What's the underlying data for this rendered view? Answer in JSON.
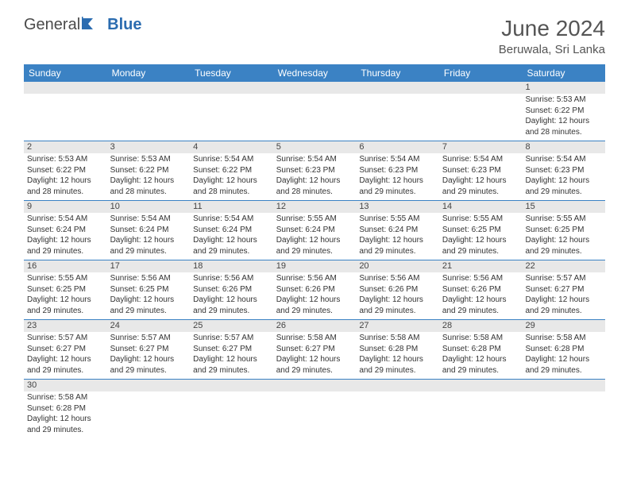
{
  "brand": {
    "general": "General",
    "blue": "Blue"
  },
  "title": "June 2024",
  "location": "Beruwala, Sri Lanka",
  "colors": {
    "header_bg": "#3b82c4",
    "header_text": "#ffffff",
    "daynum_bg": "#e8e8e8",
    "row_divider": "#3b82c4",
    "text": "#333333",
    "title_color": "#555555"
  },
  "dayNames": [
    "Sunday",
    "Monday",
    "Tuesday",
    "Wednesday",
    "Thursday",
    "Friday",
    "Saturday"
  ],
  "weeks": [
    [
      null,
      null,
      null,
      null,
      null,
      null,
      {
        "n": "1",
        "sunrise": "5:53 AM",
        "sunset": "6:22 PM",
        "daylight": "12 hours and 28 minutes."
      }
    ],
    [
      {
        "n": "2",
        "sunrise": "5:53 AM",
        "sunset": "6:22 PM",
        "daylight": "12 hours and 28 minutes."
      },
      {
        "n": "3",
        "sunrise": "5:53 AM",
        "sunset": "6:22 PM",
        "daylight": "12 hours and 28 minutes."
      },
      {
        "n": "4",
        "sunrise": "5:54 AM",
        "sunset": "6:22 PM",
        "daylight": "12 hours and 28 minutes."
      },
      {
        "n": "5",
        "sunrise": "5:54 AM",
        "sunset": "6:23 PM",
        "daylight": "12 hours and 28 minutes."
      },
      {
        "n": "6",
        "sunrise": "5:54 AM",
        "sunset": "6:23 PM",
        "daylight": "12 hours and 29 minutes."
      },
      {
        "n": "7",
        "sunrise": "5:54 AM",
        "sunset": "6:23 PM",
        "daylight": "12 hours and 29 minutes."
      },
      {
        "n": "8",
        "sunrise": "5:54 AM",
        "sunset": "6:23 PM",
        "daylight": "12 hours and 29 minutes."
      }
    ],
    [
      {
        "n": "9",
        "sunrise": "5:54 AM",
        "sunset": "6:24 PM",
        "daylight": "12 hours and 29 minutes."
      },
      {
        "n": "10",
        "sunrise": "5:54 AM",
        "sunset": "6:24 PM",
        "daylight": "12 hours and 29 minutes."
      },
      {
        "n": "11",
        "sunrise": "5:54 AM",
        "sunset": "6:24 PM",
        "daylight": "12 hours and 29 minutes."
      },
      {
        "n": "12",
        "sunrise": "5:55 AM",
        "sunset": "6:24 PM",
        "daylight": "12 hours and 29 minutes."
      },
      {
        "n": "13",
        "sunrise": "5:55 AM",
        "sunset": "6:24 PM",
        "daylight": "12 hours and 29 minutes."
      },
      {
        "n": "14",
        "sunrise": "5:55 AM",
        "sunset": "6:25 PM",
        "daylight": "12 hours and 29 minutes."
      },
      {
        "n": "15",
        "sunrise": "5:55 AM",
        "sunset": "6:25 PM",
        "daylight": "12 hours and 29 minutes."
      }
    ],
    [
      {
        "n": "16",
        "sunrise": "5:55 AM",
        "sunset": "6:25 PM",
        "daylight": "12 hours and 29 minutes."
      },
      {
        "n": "17",
        "sunrise": "5:56 AM",
        "sunset": "6:25 PM",
        "daylight": "12 hours and 29 minutes."
      },
      {
        "n": "18",
        "sunrise": "5:56 AM",
        "sunset": "6:26 PM",
        "daylight": "12 hours and 29 minutes."
      },
      {
        "n": "19",
        "sunrise": "5:56 AM",
        "sunset": "6:26 PM",
        "daylight": "12 hours and 29 minutes."
      },
      {
        "n": "20",
        "sunrise": "5:56 AM",
        "sunset": "6:26 PM",
        "daylight": "12 hours and 29 minutes."
      },
      {
        "n": "21",
        "sunrise": "5:56 AM",
        "sunset": "6:26 PM",
        "daylight": "12 hours and 29 minutes."
      },
      {
        "n": "22",
        "sunrise": "5:57 AM",
        "sunset": "6:27 PM",
        "daylight": "12 hours and 29 minutes."
      }
    ],
    [
      {
        "n": "23",
        "sunrise": "5:57 AM",
        "sunset": "6:27 PM",
        "daylight": "12 hours and 29 minutes."
      },
      {
        "n": "24",
        "sunrise": "5:57 AM",
        "sunset": "6:27 PM",
        "daylight": "12 hours and 29 minutes."
      },
      {
        "n": "25",
        "sunrise": "5:57 AM",
        "sunset": "6:27 PM",
        "daylight": "12 hours and 29 minutes."
      },
      {
        "n": "26",
        "sunrise": "5:58 AM",
        "sunset": "6:27 PM",
        "daylight": "12 hours and 29 minutes."
      },
      {
        "n": "27",
        "sunrise": "5:58 AM",
        "sunset": "6:28 PM",
        "daylight": "12 hours and 29 minutes."
      },
      {
        "n": "28",
        "sunrise": "5:58 AM",
        "sunset": "6:28 PM",
        "daylight": "12 hours and 29 minutes."
      },
      {
        "n": "29",
        "sunrise": "5:58 AM",
        "sunset": "6:28 PM",
        "daylight": "12 hours and 29 minutes."
      }
    ],
    [
      {
        "n": "30",
        "sunrise": "5:58 AM",
        "sunset": "6:28 PM",
        "daylight": "12 hours and 29 minutes."
      },
      null,
      null,
      null,
      null,
      null,
      null
    ]
  ],
  "labels": {
    "sunrise": "Sunrise:",
    "sunset": "Sunset:",
    "daylight": "Daylight:"
  }
}
